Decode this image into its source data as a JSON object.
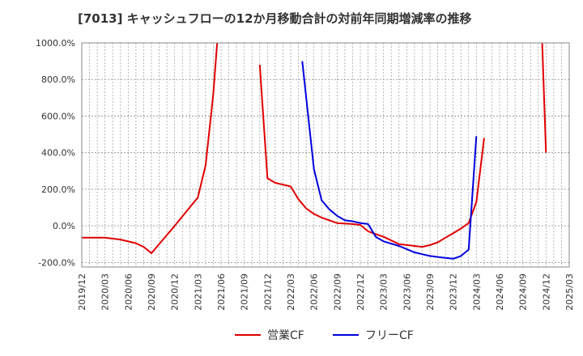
{
  "chart_data": {
    "type": "line",
    "title": "[7013]  キャッシュフローの12か月移動合計の対前年同期増減率の推移",
    "xlabel": "",
    "ylabel": "",
    "ylim": [
      -200,
      1000
    ],
    "y_ticks": [
      -200,
      0,
      200,
      400,
      600,
      800,
      1000
    ],
    "y_tick_labels": [
      "-200.0%",
      "0.0%",
      "200.0%",
      "400.0%",
      "600.0%",
      "800.0%",
      "1000.0%"
    ],
    "x_tick_labels": [
      "2019/12",
      "2020/03",
      "2020/06",
      "2020/09",
      "2020/12",
      "2021/03",
      "2021/06",
      "2021/09",
      "2021/12",
      "2022/03",
      "2022/06",
      "2022/09",
      "2022/12",
      "2023/03",
      "2023/06",
      "2023/09",
      "2023/12",
      "2024/03",
      "2024/06",
      "2024/09",
      "2024/12",
      "2025/03"
    ],
    "x_start": "2019/12",
    "grid": true,
    "legend_position": "bottom-center",
    "series": [
      {
        "name": "営業CF",
        "color": "#e00000",
        "segments": [
          [
            [
              0,
              -65
            ],
            [
              3,
              -65
            ],
            [
              5,
              -75
            ],
            [
              7,
              -95
            ],
            [
              8,
              -115
            ],
            [
              9,
              -150
            ],
            [
              12,
              0
            ],
            [
              15,
              155
            ],
            [
              16,
              330
            ],
            [
              17,
              720
            ],
            [
              17.5,
              1000
            ]
          ],
          [
            [
              23,
              880
            ],
            [
              24,
              260
            ],
            [
              25,
              235
            ],
            [
              26,
              225
            ],
            [
              27,
              215
            ],
            [
              28,
              145
            ],
            [
              29,
              95
            ],
            [
              30,
              65
            ],
            [
              31,
              45
            ],
            [
              33,
              15
            ],
            [
              35,
              10
            ],
            [
              36,
              5
            ],
            [
              37,
              -30
            ],
            [
              38,
              -45
            ],
            [
              39,
              -60
            ],
            [
              41,
              -100
            ],
            [
              43,
              -110
            ],
            [
              44,
              -115
            ],
            [
              45,
              -105
            ],
            [
              46,
              -90
            ],
            [
              47,
              -65
            ],
            [
              48,
              -40
            ],
            [
              49,
              -15
            ],
            [
              50,
              15
            ],
            [
              51,
              130
            ],
            [
              52,
              480
            ]
          ],
          [
            [
              59.5,
              1000
            ],
            [
              60,
              400
            ]
          ]
        ]
      },
      {
        "name": "フリーCF",
        "color": "#0000dd",
        "segments": [
          [
            [
              28.5,
              900
            ],
            [
              30,
              310
            ],
            [
              31,
              140
            ],
            [
              32,
              90
            ],
            [
              33,
              55
            ],
            [
              34,
              30
            ],
            [
              35,
              25
            ],
            [
              36,
              15
            ],
            [
              37,
              10
            ],
            [
              38,
              -60
            ],
            [
              39,
              -85
            ],
            [
              41,
              -110
            ],
            [
              43,
              -145
            ],
            [
              44,
              -155
            ],
            [
              45,
              -165
            ],
            [
              46,
              -170
            ],
            [
              47,
              -175
            ],
            [
              48,
              -180
            ],
            [
              49,
              -165
            ],
            [
              50,
              -130
            ],
            [
              51,
              490
            ]
          ]
        ]
      }
    ]
  }
}
